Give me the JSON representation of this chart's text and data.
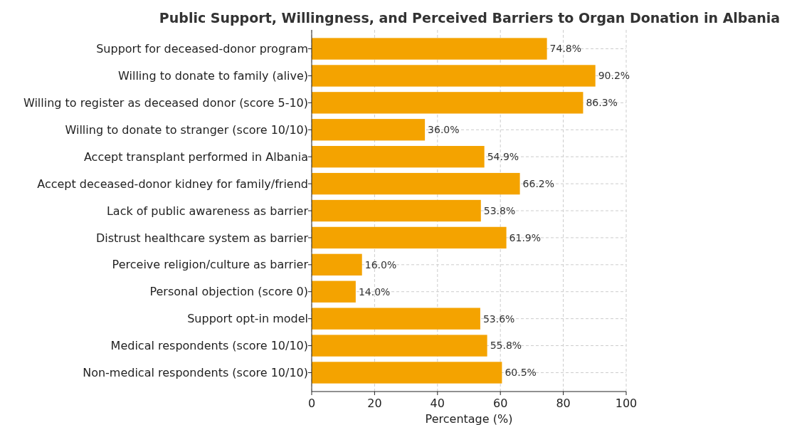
{
  "chart_data": {
    "type": "bar",
    "orientation": "horizontal",
    "title": "Public Support, Willingness, and Perceived Barriers to Organ Donation in Albania",
    "xlabel": "Percentage (%)",
    "categories": [
      "Support for deceased-donor program",
      "Willing to donate to family (alive)",
      "Willing to register as deceased donor (score 5-10)",
      "Willing to donate to stranger (score 10/10)",
      "Accept transplant performed in Albania",
      "Accept deceased-donor kidney for family/friend",
      "Lack of public awareness as barrier",
      "Distrust healthcare system as barrier",
      "Perceive religion/culture as barrier",
      "Personal objection (score 0)",
      "Support opt-in model",
      "Medical respondents (score 10/10)",
      "Non-medical respondents (score 10/10)"
    ],
    "values": [
      74.8,
      90.2,
      86.3,
      36.0,
      54.9,
      66.2,
      53.8,
      61.9,
      16.0,
      14.0,
      53.6,
      55.8,
      60.5
    ],
    "value_labels": [
      "74.8%",
      "90.2%",
      "86.3%",
      "36.0%",
      "54.9%",
      "66.2%",
      "53.8%",
      "61.9%",
      "16.0%",
      "14.0%",
      "53.6%",
      "55.8%",
      "60.5%"
    ],
    "color": "#f4a300",
    "xlim": [
      0,
      100
    ],
    "xticks": [
      0,
      20,
      40,
      60,
      80,
      100
    ],
    "grid": true
  }
}
